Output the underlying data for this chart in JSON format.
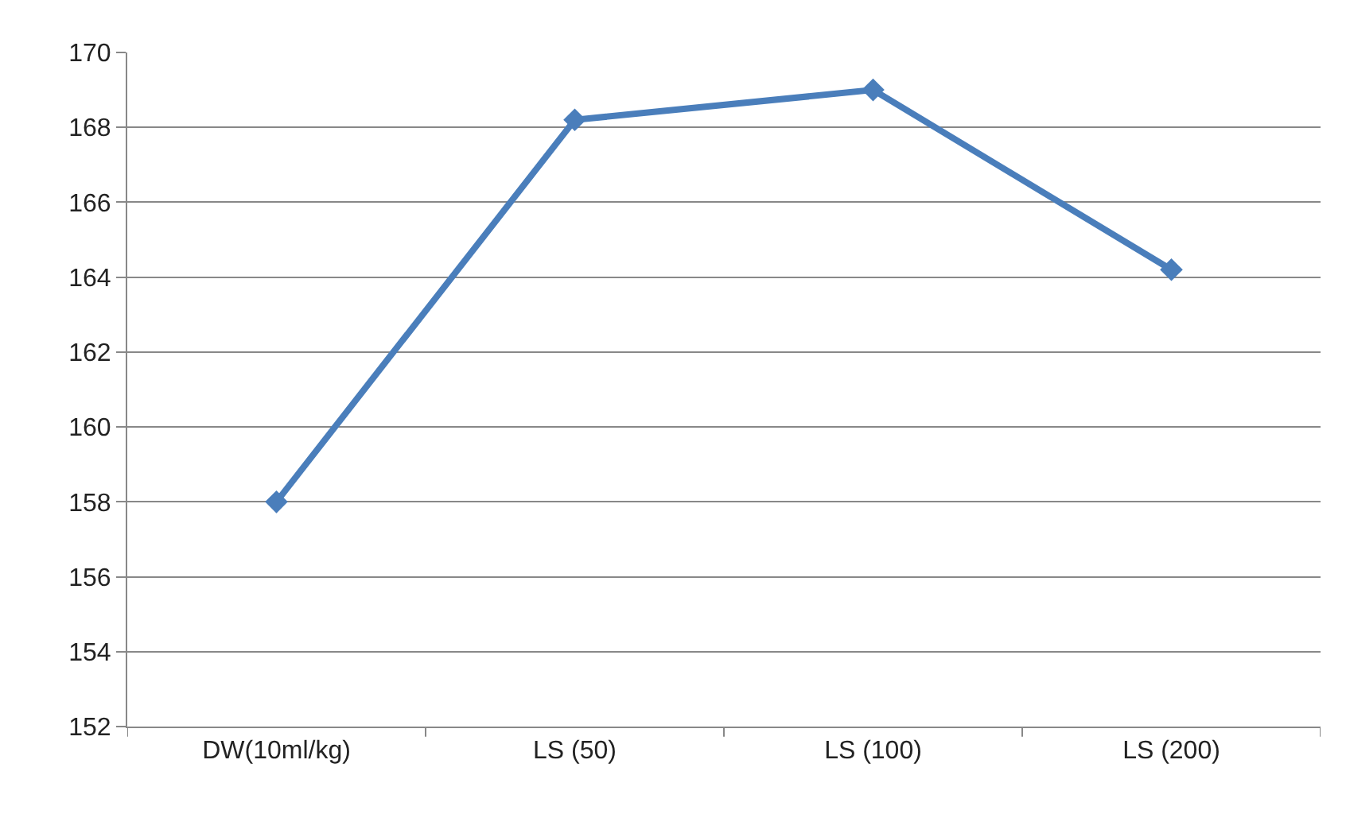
{
  "chart_data": {
    "type": "line",
    "categories": [
      "DW(10ml/kg)",
      "LS (50)",
      "LS (100)",
      "LS (200)"
    ],
    "series": [
      {
        "color": "#4a7ebb",
        "values": [
          158,
          168.2,
          169,
          164.2
        ]
      }
    ],
    "ylim": [
      152,
      170
    ],
    "yticks": [
      152,
      154,
      156,
      158,
      160,
      162,
      164,
      166,
      168,
      170
    ],
    "grid": "y",
    "marker": "diamond",
    "line_style": "solid"
  }
}
